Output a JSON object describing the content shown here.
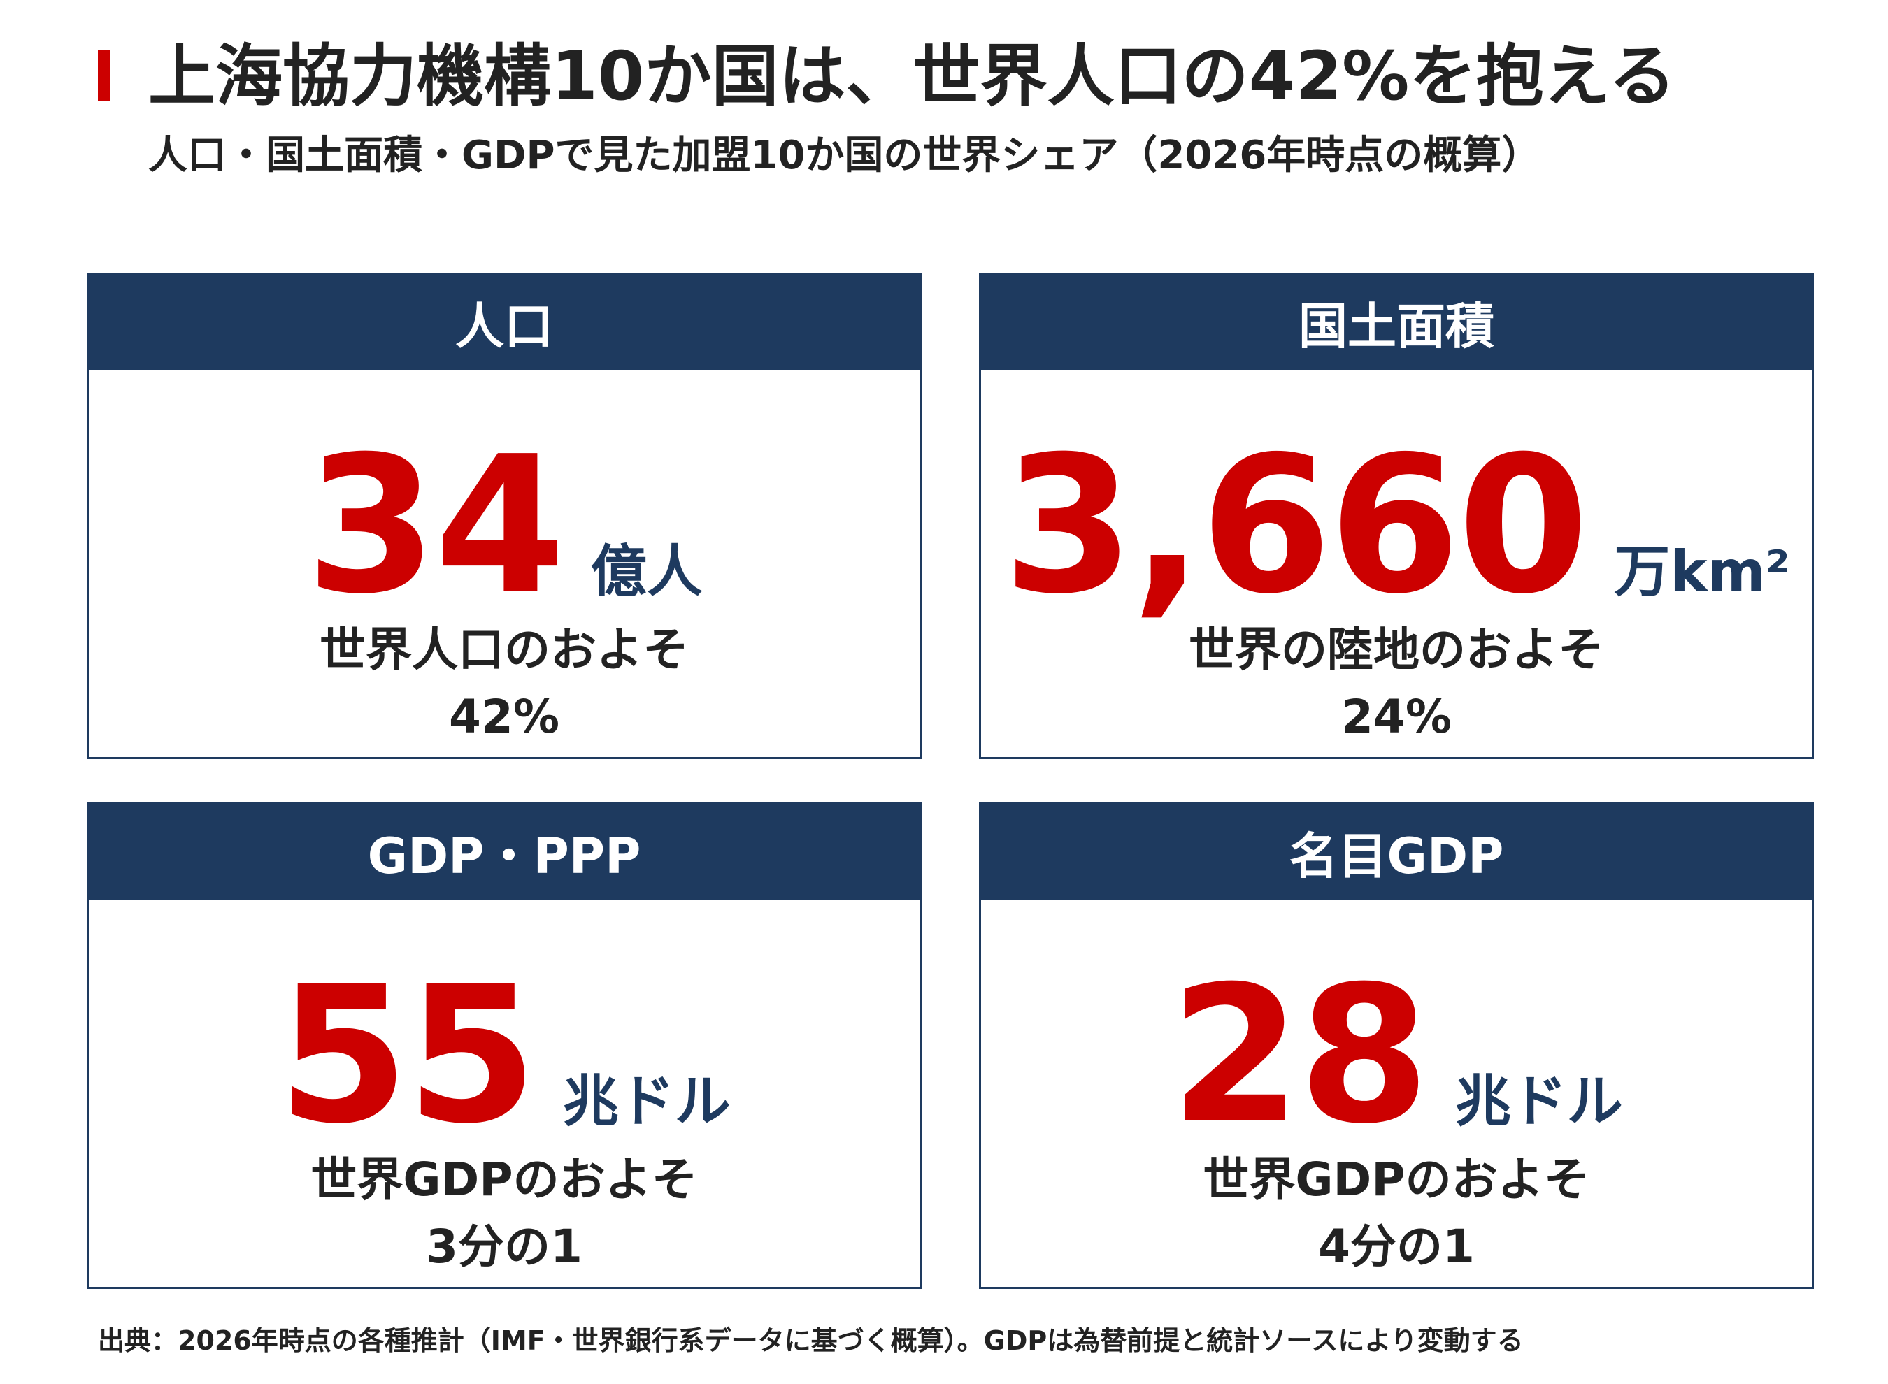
{
  "header": {
    "title": "上海協力機構10か国は、世界人口の42%を抱える",
    "subtitle": "人口・国土面積・GDPで見た加盟10か国の世界シェア（2026年時点の概算）"
  },
  "cards": [
    {
      "header": "人口",
      "value": "34",
      "unit": "億人",
      "share_label": "世界人口のおよそ",
      "share_value": "42%"
    },
    {
      "header": "国土面積",
      "value": "3,660",
      "unit": "万km²",
      "share_label": "世界の陸地のおよそ",
      "share_value": "24%"
    },
    {
      "header": "GDP・PPP",
      "value": "55",
      "unit": "兆ドル",
      "share_label": "世界GDPのおよそ",
      "share_value": "3分の1"
    },
    {
      "header": "名目GDP",
      "value": "28",
      "unit": "兆ドル",
      "share_label": "世界GDPのおよそ",
      "share_value": "4分の1"
    }
  ],
  "footer": {
    "source": "出典：2026年時点の各種推計（IMF・世界銀行系データに基づく概算）。GDPは為替前提と統計ソースにより変動する"
  },
  "colors": {
    "accent_red": "#cc0000",
    "navy": "#1e3a5f",
    "text": "#222222",
    "background": "#ffffff"
  }
}
